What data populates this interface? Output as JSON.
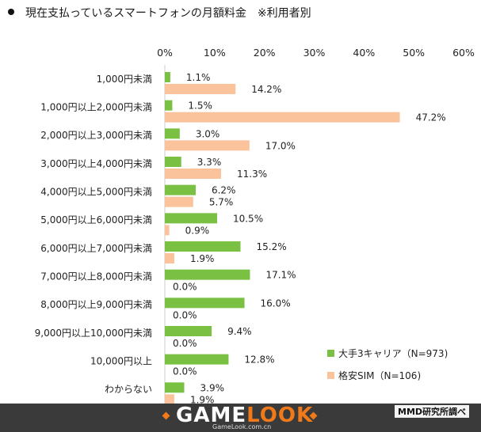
{
  "title": "現在支払っているスマートフォンの月額料金　※利用者別",
  "chart_data": {
    "type": "bar",
    "orientation": "horizontal",
    "categories": [
      "1,000円未満",
      "1,000円以上2,000円未満",
      "2,000円以上3,000円未満",
      "3,000円以上4,000円未満",
      "4,000円以上5,000円未満",
      "5,000円以上6,000円未満",
      "6,000円以上7,000円未満",
      "7,000円以上8,000円未満",
      "8,000円以上9,000円未満",
      "9,000円以上10,000円未満",
      "10,000円以上",
      "わからない"
    ],
    "series": [
      {
        "name": "大手3キャリア（N=973)",
        "color": "#7ac143",
        "values": [
          1.1,
          1.5,
          3.0,
          3.3,
          6.2,
          10.5,
          15.2,
          17.1,
          16.0,
          9.4,
          12.8,
          3.9
        ],
        "labels": [
          "1.1%",
          "1.5%",
          "3.0%",
          "3.3%",
          "6.2%",
          "10.5%",
          "15.2%",
          "17.1%",
          "16.0%",
          "9.4%",
          "12.8%",
          "3.9%"
        ]
      },
      {
        "name": "格安SIM（N=106)",
        "color": "#fbc39b",
        "values": [
          14.2,
          47.2,
          17.0,
          11.3,
          5.7,
          0.9,
          1.9,
          0.0,
          0.0,
          0.0,
          0.0,
          1.9
        ],
        "labels": [
          "14.2%",
          "47.2%",
          "17.0%",
          "11.3%",
          "5.7%",
          "0.9%",
          "1.9%",
          "0.0%",
          "0.0%",
          "0.0%",
          "0.0%",
          "1.9%"
        ]
      }
    ],
    "xlim": [
      0,
      60
    ],
    "xticks": [
      "0%",
      "10%",
      "20%",
      "30%",
      "40%",
      "50%",
      "60%"
    ],
    "legend_position": "bottom-right",
    "grid": false
  },
  "footer": {
    "logo_part1": "GAME",
    "logo_part2": "LOOK",
    "logo_url": "GameLook.com.cn",
    "credit": "MMD研究所調べ",
    "bg_color": "#3a3a3a",
    "accent_color": "#f07a1a"
  }
}
